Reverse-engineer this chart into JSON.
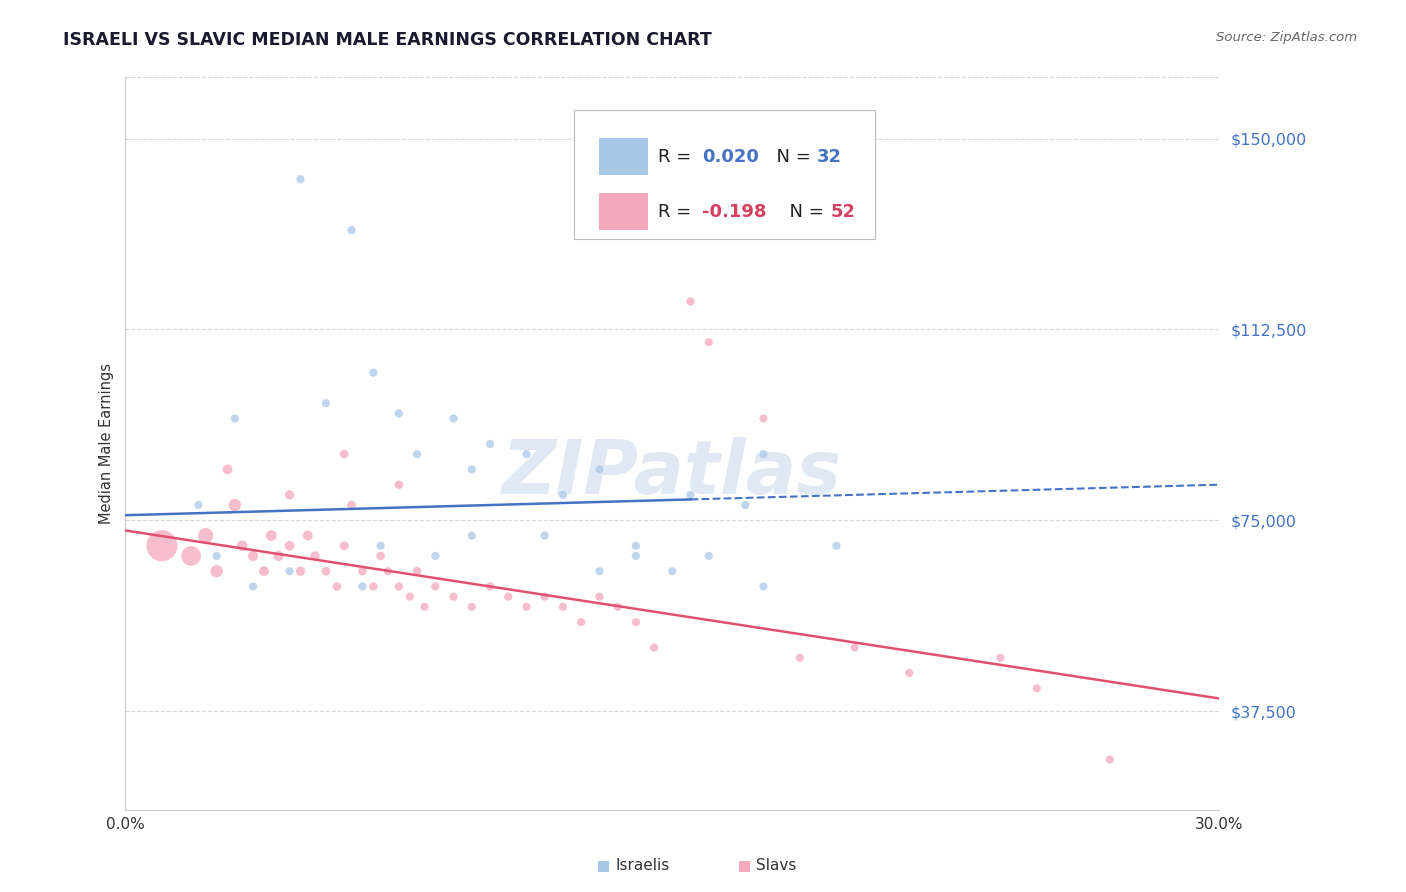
{
  "title": "ISRAELI VS SLAVIC MEDIAN MALE EARNINGS CORRELATION CHART",
  "source": "Source: ZipAtlas.com",
  "ylabel": "Median Male Earnings",
  "yticks": [
    37500,
    75000,
    112500,
    150000
  ],
  "ytick_labels": [
    "$37,500",
    "$75,000",
    "$112,500",
    "$150,000"
  ],
  "xlim": [
    0.0,
    0.3
  ],
  "ylim": [
    18000,
    162000
  ],
  "legend_R_israeli": "R = 0.020",
  "legend_N_israeli": "N = 32",
  "legend_R_slavic": "R = -0.198",
  "legend_N_slavic": "N = 52",
  "israeli_color": "#a8c8e8",
  "slavic_color": "#f4a8bc",
  "israeli_line_color": "#4472c4",
  "slavic_line_color": "#e05070",
  "watermark": "ZIPatlas",
  "background_color": "#ffffff",
  "grid_color": "#d8d8d8",
  "title_color": "#1a1a2e",
  "source_color": "#666666",
  "ytick_color": "#4472c4",
  "legend_text_color_israeli": "#4472c4",
  "legend_text_color_slavic": "#d44060",
  "israeli_scatter_x": [
    0.02,
    0.03,
    0.048,
    0.062,
    0.068,
    0.055,
    0.075,
    0.08,
    0.09,
    0.095,
    0.1,
    0.11,
    0.115,
    0.12,
    0.13,
    0.14,
    0.155,
    0.16,
    0.17,
    0.175,
    0.14,
    0.15,
    0.195,
    0.175,
    0.13,
    0.095,
    0.085,
    0.07,
    0.065,
    0.045,
    0.035,
    0.025
  ],
  "israeli_scatter_y": [
    78000,
    95000,
    142000,
    132000,
    104000,
    98000,
    96000,
    88000,
    95000,
    85000,
    90000,
    88000,
    72000,
    80000,
    85000,
    68000,
    80000,
    68000,
    78000,
    88000,
    70000,
    65000,
    70000,
    62000,
    65000,
    72000,
    68000,
    70000,
    62000,
    65000,
    62000,
    68000
  ],
  "israeli_scatter_size": [
    35,
    35,
    35,
    35,
    35,
    35,
    35,
    35,
    35,
    35,
    35,
    35,
    35,
    35,
    35,
    35,
    35,
    35,
    35,
    35,
    35,
    35,
    35,
    35,
    35,
    35,
    35,
    35,
    35,
    35,
    35,
    35
  ],
  "slavic_scatter_x": [
    0.01,
    0.018,
    0.022,
    0.025,
    0.03,
    0.032,
    0.035,
    0.038,
    0.04,
    0.042,
    0.045,
    0.048,
    0.05,
    0.052,
    0.055,
    0.058,
    0.06,
    0.062,
    0.065,
    0.068,
    0.07,
    0.072,
    0.075,
    0.078,
    0.08,
    0.082,
    0.085,
    0.09,
    0.095,
    0.1,
    0.105,
    0.11,
    0.115,
    0.12,
    0.125,
    0.13,
    0.135,
    0.14,
    0.145,
    0.155,
    0.16,
    0.175,
    0.185,
    0.028,
    0.045,
    0.06,
    0.075,
    0.2,
    0.215,
    0.24,
    0.25,
    0.27
  ],
  "slavic_scatter_y": [
    70000,
    68000,
    72000,
    65000,
    78000,
    70000,
    68000,
    65000,
    72000,
    68000,
    70000,
    65000,
    72000,
    68000,
    65000,
    62000,
    70000,
    78000,
    65000,
    62000,
    68000,
    65000,
    62000,
    60000,
    65000,
    58000,
    62000,
    60000,
    58000,
    62000,
    60000,
    58000,
    60000,
    58000,
    55000,
    60000,
    58000,
    55000,
    50000,
    118000,
    110000,
    95000,
    48000,
    85000,
    80000,
    88000,
    82000,
    50000,
    45000,
    48000,
    42000,
    28000
  ],
  "slavic_scatter_size": [
    500,
    200,
    120,
    80,
    80,
    60,
    55,
    50,
    60,
    55,
    50,
    45,
    50,
    45,
    40,
    38,
    42,
    40,
    38,
    36,
    38,
    36,
    36,
    35,
    38,
    35,
    36,
    35,
    35,
    35,
    35,
    35,
    35,
    35,
    35,
    35,
    35,
    35,
    35,
    35,
    35,
    35,
    35,
    50,
    45,
    40,
    38,
    35,
    35,
    35,
    35,
    35
  ],
  "israeli_trend_x": [
    0.0,
    0.3
  ],
  "israeli_trend_y": [
    76000,
    82000
  ],
  "israeli_trend_solid_end": 0.155,
  "slavic_trend_x": [
    0.0,
    0.3
  ],
  "slavic_trend_y": [
    73000,
    40000
  ]
}
